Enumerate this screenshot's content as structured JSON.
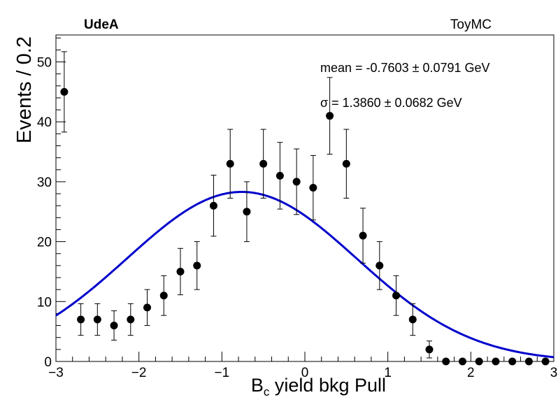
{
  "header": {
    "left_label": "UdeA",
    "right_label": "ToyMC"
  },
  "stats": {
    "mean_text": "mean = -0.7603 ± 0.0791 GeV",
    "sigma_text": "σ = 1.3860 ± 0.0682 GeV"
  },
  "chart_data": {
    "type": "scatter",
    "xlabel_main": "B",
    "xlabel_sub": "c",
    "xlabel_rest": " yield bkg Pull",
    "ylabel": "Events / 0.2",
    "xlim": [
      -3,
      3
    ],
    "ylim": [
      0,
      54.5
    ],
    "x_ticks": [
      -3,
      -2,
      -1,
      0,
      1,
      2,
      3
    ],
    "x_tick_labels": [
      "−3",
      "−2",
      "−1",
      "0",
      "1",
      "2",
      "3"
    ],
    "y_ticks": [
      0,
      10,
      20,
      30,
      40,
      50
    ],
    "y_tick_labels": [
      "0",
      "10",
      "20",
      "30",
      "40",
      "50"
    ],
    "marker_color": "#000000",
    "fit_color": "#0000cc",
    "points": [
      {
        "x": -2.9,
        "y": 45
      },
      {
        "x": -2.7,
        "y": 7
      },
      {
        "x": -2.5,
        "y": 7
      },
      {
        "x": -2.3,
        "y": 6
      },
      {
        "x": -2.1,
        "y": 7
      },
      {
        "x": -1.9,
        "y": 9
      },
      {
        "x": -1.7,
        "y": 11
      },
      {
        "x": -1.5,
        "y": 15
      },
      {
        "x": -1.3,
        "y": 16
      },
      {
        "x": -1.1,
        "y": 26
      },
      {
        "x": -0.9,
        "y": 33
      },
      {
        "x": -0.7,
        "y": 25
      },
      {
        "x": -0.5,
        "y": 33
      },
      {
        "x": -0.3,
        "y": 31
      },
      {
        "x": -0.1,
        "y": 30
      },
      {
        "x": 0.1,
        "y": 29
      },
      {
        "x": 0.3,
        "y": 41
      },
      {
        "x": 0.5,
        "y": 33
      },
      {
        "x": 0.7,
        "y": 21
      },
      {
        "x": 0.9,
        "y": 16
      },
      {
        "x": 1.1,
        "y": 11
      },
      {
        "x": 1.3,
        "y": 7
      },
      {
        "x": 1.5,
        "y": 2
      },
      {
        "x": 1.7,
        "y": 0
      },
      {
        "x": 1.9,
        "y": 0
      },
      {
        "x": 2.1,
        "y": 0
      },
      {
        "x": 2.3,
        "y": 0
      },
      {
        "x": 2.5,
        "y": 0
      },
      {
        "x": 2.7,
        "y": 0
      },
      {
        "x": 2.9,
        "y": 0
      }
    ],
    "fit": {
      "type": "gaussian",
      "mean": -0.7603,
      "sigma": 1.386,
      "amplitude": 28.3
    }
  }
}
